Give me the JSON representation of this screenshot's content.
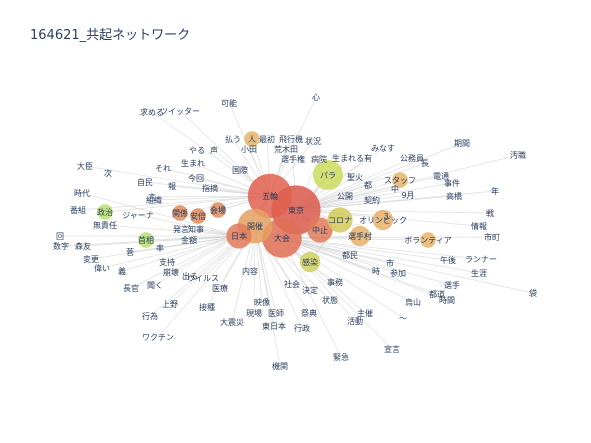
{
  "chart_data": {
    "type": "network",
    "title": "164621_共起ネットワーク",
    "edge_color": "#d3d3d3",
    "label_color": "#2a3f5f",
    "nodes": [
      {
        "label": "心",
        "weight": 1,
        "color": "#d3d3d3"
      },
      {
        "label": "可能",
        "weight": 1,
        "color": "#d3d3d3"
      },
      {
        "label": "求める",
        "weight": 1,
        "color": "#d3d3d3"
      },
      {
        "label": "ツイッター",
        "weight": 1,
        "color": "#d3d3d3"
      },
      {
        "label": "払う",
        "weight": 1,
        "color": "#d3d3d3"
      },
      {
        "label": "人",
        "weight": 2,
        "color": "#e8b468"
      },
      {
        "label": "最初",
        "weight": 1,
        "color": "#d3d3d3"
      },
      {
        "label": "飛行機",
        "weight": 1,
        "color": "#d3d3d3"
      },
      {
        "label": "やる",
        "weight": 1,
        "color": "#d3d3d3"
      },
      {
        "label": "声",
        "weight": 1,
        "color": "#d3d3d3"
      },
      {
        "label": "小田",
        "weight": 1,
        "color": "#d3d3d3"
      },
      {
        "label": "荒木田",
        "weight": 1,
        "color": "#d3d3d3"
      },
      {
        "label": "状況",
        "weight": 1,
        "color": "#d3d3d3"
      },
      {
        "label": "選手権",
        "weight": 1,
        "color": "#d3d3d3"
      },
      {
        "label": "病院",
        "weight": 1,
        "color": "#d3d3d3"
      },
      {
        "label": "生まれる",
        "weight": 1,
        "color": "#d3d3d3"
      },
      {
        "label": "有",
        "weight": 1,
        "color": "#d3d3d3"
      },
      {
        "label": "公務員",
        "weight": 1,
        "color": "#d3d3d3"
      },
      {
        "label": "期間",
        "weight": 1,
        "color": "#d3d3d3"
      },
      {
        "label": "汚職",
        "weight": 1,
        "color": "#d3d3d3"
      },
      {
        "label": "大臣",
        "weight": 1,
        "color": "#d3d3d3"
      },
      {
        "label": "次",
        "weight": 1,
        "color": "#d3d3d3"
      },
      {
        "label": "時代",
        "weight": 1,
        "color": "#d3d3d3"
      },
      {
        "label": "番組",
        "weight": 1,
        "color": "#d3d3d3"
      },
      {
        "label": "政治",
        "weight": 2,
        "color": "#b8e06e"
      },
      {
        "label": "無責任",
        "weight": 1,
        "color": "#d3d3d3"
      },
      {
        "label": "ジャーナ",
        "weight": 1,
        "color": "#d3d3d3"
      },
      {
        "label": "回",
        "weight": 1,
        "color": "#d3d3d3"
      },
      {
        "label": "数字",
        "weight": 1,
        "color": "#d3d3d3"
      },
      {
        "label": "森友",
        "weight": 1,
        "color": "#d3d3d3"
      },
      {
        "label": "変更",
        "weight": 1,
        "color": "#d3d3d3"
      },
      {
        "label": "偉い",
        "weight": 1,
        "color": "#d3d3d3"
      },
      {
        "label": "義",
        "weight": 1,
        "color": "#d3d3d3"
      },
      {
        "label": "首相",
        "weight": 2,
        "color": "#b8e06e"
      },
      {
        "label": "長官",
        "weight": 1,
        "color": "#d3d3d3"
      },
      {
        "label": "聞く",
        "weight": 1,
        "color": "#d3d3d3"
      },
      {
        "label": "上野",
        "weight": 1,
        "color": "#d3d3d3"
      },
      {
        "label": "行為",
        "weight": 1,
        "color": "#d3d3d3"
      },
      {
        "label": "ワクチン",
        "weight": 1,
        "color": "#d3d3d3"
      },
      {
        "label": "接種",
        "weight": 1,
        "color": "#d3d3d3"
      },
      {
        "label": "大震災",
        "weight": 1,
        "color": "#d3d3d3"
      },
      {
        "label": "現場",
        "weight": 1,
        "color": "#d3d3d3"
      },
      {
        "label": "医師",
        "weight": 1,
        "color": "#d3d3d3"
      },
      {
        "label": "東日本",
        "weight": 1,
        "color": "#d3d3d3"
      },
      {
        "label": "行政",
        "weight": 1,
        "color": "#d3d3d3"
      },
      {
        "label": "祭典",
        "weight": 1,
        "color": "#d3d3d3"
      },
      {
        "label": "機関",
        "weight": 1,
        "color": "#d3d3d3"
      },
      {
        "label": "緊急",
        "weight": 1,
        "color": "#d3d3d3"
      },
      {
        "label": "宣言",
        "weight": 1,
        "color": "#d3d3d3"
      },
      {
        "label": "活動",
        "weight": 1,
        "color": "#d3d3d3"
      },
      {
        "label": "主催",
        "weight": 1,
        "color": "#d3d3d3"
      },
      {
        "label": "烏山",
        "weight": 1,
        "color": "#d3d3d3"
      },
      {
        "label": "参加",
        "weight": 1,
        "color": "#d3d3d3"
      },
      {
        "label": "時間",
        "weight": 1,
        "color": "#d3d3d3"
      },
      {
        "label": "都道",
        "weight": 1,
        "color": "#d3d3d3"
      },
      {
        "label": "選手",
        "weight": 1,
        "color": "#d3d3d3"
      },
      {
        "label": "生涯",
        "weight": 1,
        "color": "#d3d3d3"
      },
      {
        "label": "ランナー",
        "weight": 1,
        "color": "#d3d3d3"
      },
      {
        "label": "午後",
        "weight": 1,
        "color": "#d3d3d3"
      },
      {
        "label": "市町",
        "weight": 1,
        "color": "#d3d3d3"
      },
      {
        "label": "ボランティア",
        "weight": 2,
        "color": "#e8b468"
      },
      {
        "label": "事件",
        "weight": 1,
        "color": "#d3d3d3"
      },
      {
        "label": "高橋",
        "weight": 1,
        "color": "#d3d3d3"
      },
      {
        "label": "電通",
        "weight": 1,
        "color": "#d3d3d3"
      },
      {
        "label": "長",
        "weight": 1,
        "color": "#d3d3d3"
      },
      {
        "label": "みなす",
        "weight": 1,
        "color": "#d3d3d3"
      },
      {
        "label": "スタッフ",
        "weight": 2,
        "color": "#e8b468"
      },
      {
        "label": "パラ",
        "weight": 5,
        "color": "#c9dc5c"
      },
      {
        "label": "公開",
        "weight": 1,
        "color": "#d3d3d3"
      },
      {
        "label": "契約",
        "weight": 1,
        "color": "#d3d3d3"
      },
      {
        "label": "国際",
        "weight": 1,
        "color": "#d3d3d3"
      },
      {
        "label": "指摘",
        "weight": 1,
        "color": "#d3d3d3"
      },
      {
        "label": "今回",
        "weight": 1,
        "color": "#d3d3d3"
      },
      {
        "label": "関係",
        "weight": 2,
        "color": "#e08a5c"
      },
      {
        "label": "組織",
        "weight": 1,
        "color": "#d3d3d3"
      },
      {
        "label": "安倍",
        "weight": 2,
        "color": "#e08a5c"
      },
      {
        "label": "会場",
        "weight": 2,
        "color": "#e08a5c"
      },
      {
        "label": "発言",
        "weight": 1,
        "color": "#d3d3d3"
      },
      {
        "label": "知事",
        "weight": 1,
        "color": "#d3d3d3"
      },
      {
        "label": "金額",
        "weight": 1,
        "color": "#d3d3d3"
      },
      {
        "label": "支持",
        "weight": 1,
        "color": "#d3d3d3"
      },
      {
        "label": "崩壊",
        "weight": 1,
        "color": "#d3d3d3"
      },
      {
        "label": "ウイルス",
        "weight": 1,
        "color": "#d3d3d3"
      },
      {
        "label": "医療",
        "weight": 1,
        "color": "#d3d3d3"
      },
      {
        "label": "五輪",
        "weight": 8,
        "color": "#e0604f"
      },
      {
        "label": "東京",
        "weight": 9,
        "color": "#d9584b"
      },
      {
        "label": "大会",
        "weight": 7,
        "color": "#e06e55"
      },
      {
        "label": "開催",
        "weight": 6,
        "color": "#e4a060"
      },
      {
        "label": "中止",
        "weight": 4,
        "color": "#e07a5a"
      },
      {
        "label": "日本",
        "weight": 4,
        "color": "#e07a5a"
      },
      {
        "label": "コロナ",
        "weight": 4,
        "color": "#d4c95a"
      },
      {
        "label": "感染",
        "weight": 3,
        "color": "#cfd162"
      },
      {
        "label": "選手村",
        "weight": 3,
        "color": "#e6b06a"
      },
      {
        "label": "オリンピック",
        "weight": 3,
        "color": "#e6b06a"
      },
      {
        "label": "3",
        "weight": 1,
        "color": "#d3d3d3"
      },
      {
        "label": "9月",
        "weight": 1,
        "color": "#d3d3d3"
      },
      {
        "label": "中",
        "weight": 1,
        "color": "#d3d3d3"
      },
      {
        "label": "市",
        "weight": 1,
        "color": "#d3d3d3"
      },
      {
        "label": "時",
        "weight": 1,
        "color": "#d3d3d3"
      },
      {
        "label": "事務",
        "weight": 1,
        "color": "#d3d3d3"
      },
      {
        "label": "内容",
        "weight": 1,
        "color": "#d3d3d3"
      },
      {
        "label": "出る",
        "weight": 1,
        "color": "#d3d3d3"
      },
      {
        "label": "言",
        "weight": 1,
        "color": "#d3d3d3"
      },
      {
        "label": "報",
        "weight": 1,
        "color": "#d3d3d3"
      },
      {
        "label": "率",
        "weight": 1,
        "color": "#d3d3d3"
      },
      {
        "label": "菅",
        "weight": 1,
        "color": "#d3d3d3"
      },
      {
        "label": "自民",
        "weight": 1,
        "color": "#d3d3d3"
      },
      {
        "label": "それ",
        "weight": 1,
        "color": "#d3d3d3"
      },
      {
        "label": "生まれ",
        "weight": 1,
        "color": "#d3d3d3"
      },
      {
        "label": "聖火",
        "weight": 1,
        "color": "#d3d3d3"
      },
      {
        "label": "都",
        "weight": 1,
        "color": "#d3d3d3"
      },
      {
        "label": "都民",
        "weight": 1,
        "color": "#d3d3d3"
      },
      {
        "label": "社会",
        "weight": 1,
        "color": "#d3d3d3"
      },
      {
        "label": "決定",
        "weight": 1,
        "color": "#d3d3d3"
      },
      {
        "label": "状態",
        "weight": 1,
        "color": "#d3d3d3"
      },
      {
        "label": "映像",
        "weight": 1,
        "color": "#d3d3d3"
      },
      {
        "label": "～",
        "weight": 1,
        "color": "#d3d3d3"
      },
      {
        "label": "袋",
        "weight": 1,
        "color": "#d3d3d3"
      },
      {
        "label": "情報",
        "weight": 1,
        "color": "#d3d3d3"
      },
      {
        "label": "戦",
        "weight": 1,
        "color": "#d3d3d3"
      },
      {
        "label": "年",
        "weight": 1,
        "color": "#d3d3d3"
      }
    ]
  }
}
